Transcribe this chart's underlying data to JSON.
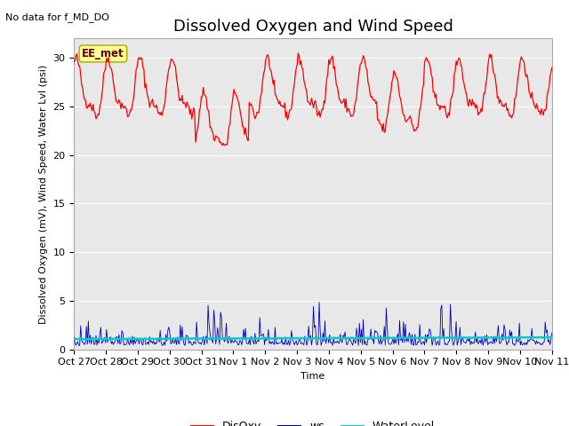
{
  "title": "Dissolved Oxygen and Wind Speed",
  "top_left_note": "No data for f_MD_DO",
  "ylabel": "Dissolved Oxygen (mV), Wind Speed, Water Lvl (psi)",
  "xlabel": "Time",
  "annotation_label": "EE_met",
  "ylim": [
    0,
    32
  ],
  "yticks": [
    0,
    5,
    10,
    15,
    20,
    25,
    30
  ],
  "xtick_labels": [
    "Oct 27",
    "Oct 28",
    "Oct 29",
    "Oct 30",
    "Oct 31",
    "Nov 1",
    "Nov 2",
    "Nov 3",
    "Nov 4",
    "Nov 5",
    "Nov 6",
    "Nov 7",
    "Nov 8",
    "Nov 9",
    "Nov 10",
    "Nov 11"
  ],
  "n_points": 500,
  "disoxy_color": "#FF0000",
  "ws_color": "#0000BB",
  "wl_color": "#00CCCC",
  "background_color": "#E8E8E8",
  "grid_color": "#FFFFFF",
  "title_fontsize": 13,
  "label_fontsize": 8,
  "tick_fontsize": 8,
  "legend_fontsize": 9
}
